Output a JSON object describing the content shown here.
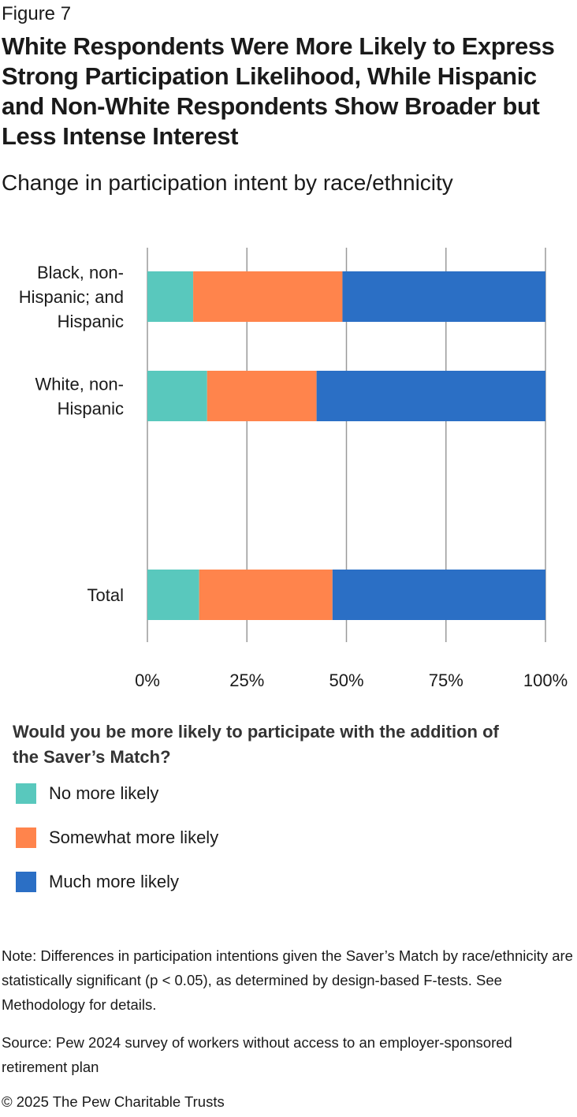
{
  "figure_label": "Figure 7",
  "title": "White Respondents Were More Likely to Express Strong Participation Likelihood, While Hispanic and Non-White Respondents Show Broader but Less Intense Interest",
  "subtitle": "Change in participation intent by race/ethnicity",
  "legend": {
    "title": "Would you be more likely to participate with the addition of the Saver’s Match?",
    "items": [
      {
        "label": "No more likely",
        "color": "#59c8bd"
      },
      {
        "label": "Somewhat more likely",
        "color": "#ff844c"
      },
      {
        "label": "Much more likely",
        "color": "#2b6fc5"
      }
    ]
  },
  "chart_data": {
    "type": "bar",
    "orientation": "horizontal",
    "stacked": true,
    "categories": [
      [
        "Black, non-",
        "Hispanic; and",
        "Hispanic"
      ],
      [
        "White, non-",
        "Hispanic"
      ],
      [
        "Total"
      ]
    ],
    "series": [
      {
        "name": "No more likely",
        "color": "#59c8bd",
        "values": [
          11.5,
          15,
          13
        ]
      },
      {
        "name": "Somewhat more likely",
        "color": "#ff844c",
        "values": [
          37.5,
          27.5,
          33.5
        ]
      },
      {
        "name": "Much more likely",
        "color": "#2b6fc5",
        "values": [
          51,
          57.5,
          53.5
        ]
      }
    ],
    "xlim": [
      0,
      100
    ],
    "x_ticks": [
      "0%",
      "25%",
      "50%",
      "75%",
      "100%"
    ],
    "grid": true
  },
  "note": "Note: Differences in participation intentions given the Saver’s Match by race/ethnicity are statistically significant (p < 0.05), as determined by design-based F-tests. See Methodology for details.",
  "source": "Source: Pew 2024 survey of workers without access to an employer-sponsored retirement plan",
  "copyright": "© 2025 The Pew Charitable Trusts"
}
